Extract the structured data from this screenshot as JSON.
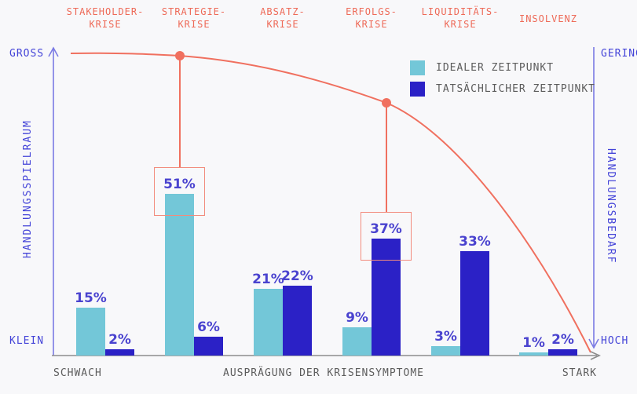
{
  "axes": {
    "left": {
      "top_label": "GROSS",
      "bottom_label": "KLEIN",
      "axis_title": "HANDLUNGSSPIELRAUM"
    },
    "right": {
      "top_label": "GERING",
      "bottom_label": "HOCH",
      "axis_title": "HANDLUNGSBEDARF"
    },
    "x": {
      "left_label": "SCHWACH",
      "title": "AUSPRÄGUNG DER KRISENSYMPTOME",
      "right_label": "STARK"
    }
  },
  "legend": {
    "items": [
      {
        "label": "IDEALER ZEITPUNKT",
        "color": "#73c7d8"
      },
      {
        "label": "TATSÄCHLICHER ZEITPUNKT",
        "color": "#2b21c6"
      }
    ]
  },
  "colors": {
    "background": "#f8f8fa",
    "ideal_bar": "#73c7d8",
    "actual_bar": "#2b21c6",
    "value_text": "#4a43cf",
    "crisis_text": "#ee6a58",
    "curve": "#f0705f",
    "highlight_box": "#f28b7d",
    "axis_line": "#7a7ae4",
    "axis_text": "#4444d8",
    "muted_text": "#5c5c5c",
    "x_axis_line": "#8c8c8c"
  },
  "chart_data": {
    "type": "bar",
    "categories": [
      "STAKEHOLDER-KRISE",
      "STRATEGIE-KRISE",
      "ABSATZ-KRISE",
      "ERFOLGS-KRISE",
      "LIQUIDITÄTS-KRISE",
      "INSOLVENZ"
    ],
    "category_lines": [
      [
        "STAKEHOLDER-",
        "KRISE"
      ],
      [
        "STRATEGIE-",
        "KRISE"
      ],
      [
        "ABSATZ-",
        "KRISE"
      ],
      [
        "ERFOLGS-",
        "KRISE"
      ],
      [
        "LIQUIDITÄTS-",
        "KRISE"
      ],
      [
        "INSOLVENZ"
      ]
    ],
    "series": [
      {
        "name": "IDEALER ZEITPUNKT",
        "color": "#73c7d8",
        "values": [
          15,
          51,
          21,
          9,
          3,
          1
        ]
      },
      {
        "name": "TATSÄCHLICHER ZEITPUNKT",
        "color": "#2b21c6",
        "values": [
          2,
          6,
          22,
          37,
          33,
          2
        ]
      }
    ],
    "unit": "%",
    "ylim": [
      0,
      55
    ],
    "grid": false,
    "legend_position": "top-right",
    "xlabel": "AUSPRÄGUNG DER KRISENSYMPTOME",
    "x_range_labels": [
      "SCHWACH",
      "STARK"
    ],
    "left_axis": {
      "title": "HANDLUNGSSPIELRAUM",
      "top": "GROSS",
      "bottom": "KLEIN"
    },
    "right_axis": {
      "title": "HANDLUNGSBEDARF",
      "top": "GERING",
      "bottom": "HOCH"
    },
    "highlights": [
      {
        "category_index": 1,
        "series_index": 0,
        "label": "51%"
      },
      {
        "category_index": 3,
        "series_index": 1,
        "label": "37%"
      }
    ],
    "curve": {
      "description": "Krisenverlauf: fällt von GROSS/GERING nach KLEIN/HOCH",
      "color": "#f0705f"
    }
  }
}
